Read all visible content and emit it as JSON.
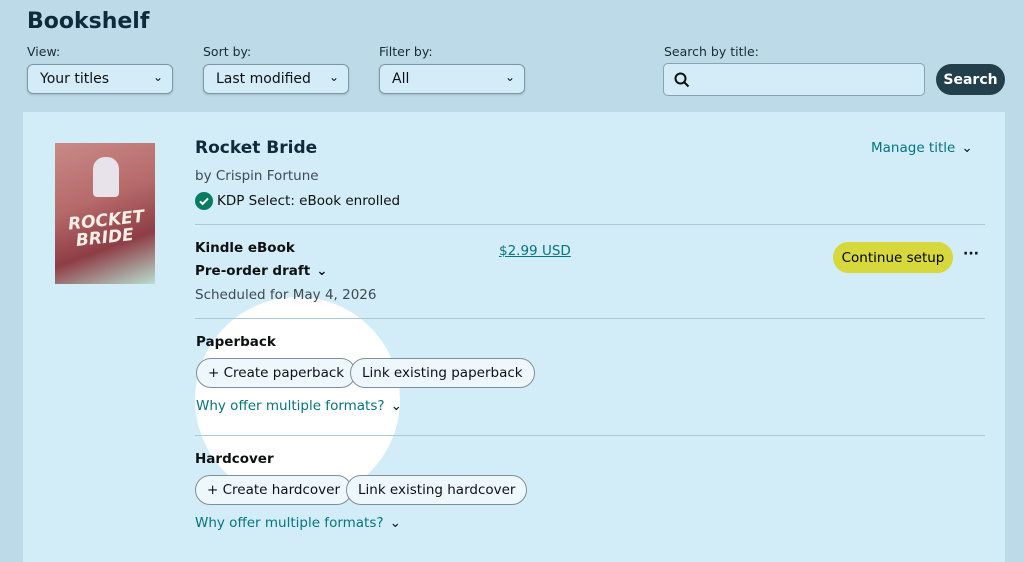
{
  "header": {
    "title": "Bookshelf"
  },
  "filters": {
    "view": {
      "label": "View:",
      "value": "Your titles"
    },
    "sort": {
      "label": "Sort by:",
      "value": "Last modified"
    },
    "filter": {
      "label": "Filter by:",
      "value": "All"
    },
    "search": {
      "label": "Search by title:",
      "value": "",
      "button": "Search"
    }
  },
  "book": {
    "title": "Rocket Bride",
    "author": "by Crispin Fortune",
    "cover_text": "ROCKET BRIDE",
    "kdp_status": "KDP Select: eBook enrolled",
    "manage": "Manage title",
    "ebook": {
      "format": "Kindle eBook",
      "status": "Pre-order draft",
      "scheduled": "Scheduled for May 4, 2026",
      "price": "$2.99 USD",
      "action": "Continue setup",
      "more": "···"
    },
    "paperback": {
      "heading": "Paperback",
      "create": "+ Create paperback",
      "link": "Link existing paperback",
      "why": "Why offer multiple formats?"
    },
    "hardcover": {
      "heading": "Hardcover",
      "create": "+ Create hardcover",
      "link": "Link existing hardcover",
      "why": "Why offer multiple formats?"
    }
  },
  "colors": {
    "accent": "#06747c",
    "continue": "#d6d83b",
    "search_button": "#233f4b",
    "check": "#067d62"
  }
}
